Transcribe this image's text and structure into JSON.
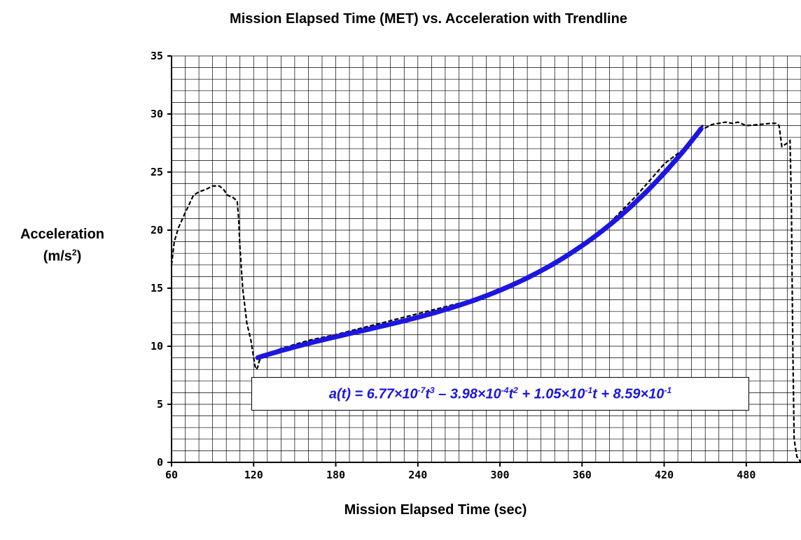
{
  "chart_data": {
    "type": "line",
    "title": "Mission Elapsed Time (MET) vs. Acceleration with Trendline",
    "xlabel": "Mission Elapsed Time (sec)",
    "ylabel": "Acceleration",
    "ylabel_unit": "(m/s",
    "ylabel_exp": "2",
    "ylabel_close": ")",
    "xlim": [
      60,
      520
    ],
    "ylim": [
      0,
      35
    ],
    "x_ticks": [
      60,
      120,
      180,
      240,
      300,
      360,
      420,
      480
    ],
    "y_ticks": [
      0,
      5,
      10,
      15,
      20,
      25,
      30,
      35
    ],
    "grid": true,
    "series": [
      {
        "style": "dashed",
        "color": "#000000",
        "x": [
          60,
          62,
          65,
          70,
          76,
          80,
          85,
          90,
          95,
          98,
          101,
          105,
          108,
          109,
          110,
          112,
          115,
          118,
          120,
          121,
          122,
          123,
          124,
          125,
          130,
          140,
          160,
          180,
          200,
          220,
          240,
          260,
          280,
          300,
          320,
          340,
          360,
          380,
          400,
          420,
          440,
          445,
          448,
          450,
          455,
          460,
          465,
          470,
          474,
          480,
          490,
          498,
          502,
          504,
          506,
          510,
          512,
          513,
          514,
          515,
          517,
          520
        ],
        "y": [
          17,
          19,
          20.2,
          21.5,
          23,
          23.3,
          23.5,
          23.8,
          23.8,
          23.5,
          23,
          22.8,
          22.5,
          21,
          18.5,
          15,
          12,
          10.5,
          9,
          8.3,
          8,
          8.2,
          8.7,
          8.9,
          9.3,
          9.8,
          10.5,
          11,
          11.6,
          12.2,
          12.8,
          13.4,
          14,
          14.8,
          15.8,
          17,
          18.6,
          20.6,
          23,
          25.7,
          27.5,
          28.5,
          29,
          28.8,
          29.1,
          29.2,
          29.3,
          29.2,
          29.3,
          29,
          29.1,
          29.2,
          29.2,
          29,
          27.2,
          27.5,
          27.7,
          22,
          10,
          2,
          0.5,
          0
        ]
      },
      {
        "name": "",
        "style": "trend",
        "color": "#1c16e0",
        "equation_coeffs": [
          6.77e-07,
          -0.000398,
          0.105,
          0.859
        ],
        "x_range": [
          123,
          447
        ]
      }
    ],
    "annotation": {
      "prefix": "a",
      "open": "(",
      "var": "t",
      "close": ")",
      "term1": " = 6.77×10",
      "exp1": "-7",
      "var1": "t",
      "pow1": "3",
      "term2": " – 3.98×10",
      "exp2": "-4",
      "var2": "t",
      "pow2": "2",
      "term3": " + 1.05×10",
      "exp3": "-1",
      "var3": "t",
      "term4": " + 8.59×10",
      "exp4": "-1"
    }
  }
}
